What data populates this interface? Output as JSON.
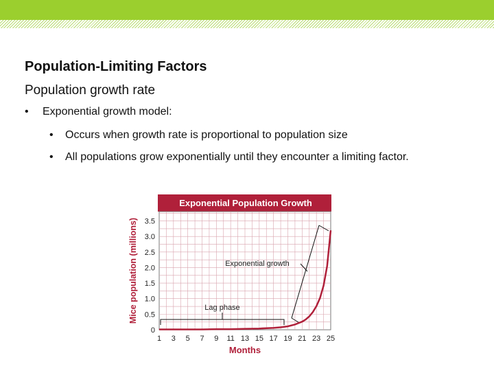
{
  "slide": {
    "title": "Population-Limiting Factors",
    "subtitle": "Population growth rate",
    "bullet1": "Exponential growth model:",
    "bullet1_1": "Occurs when growth rate is proportional to population size",
    "bullet1_2": "All populations grow exponentially until they encounter a limiting factor.",
    "bullet_symbol": "•"
  },
  "colors": {
    "accent_green": "#9bcf2e",
    "chart_title_bg": "#b0203a",
    "curve": "#b0203a",
    "axis_label": "#b0203a",
    "grid": "#d9a3ae"
  },
  "chart_data": {
    "type": "line",
    "title": "Exponential Population Growth",
    "xlabel": "Months",
    "ylabel": "Mice population (millions)",
    "x_ticks": [
      "1",
      "3",
      "5",
      "7",
      "9",
      "11",
      "13",
      "15",
      "17",
      "19",
      "21",
      "23",
      "25"
    ],
    "y_ticks": [
      "0",
      "0.5",
      "1.0",
      "1.5",
      "2.0",
      "2.5",
      "3.0",
      "3.5"
    ],
    "xlim": [
      1,
      25
    ],
    "ylim": [
      0,
      3.8
    ],
    "grid": true,
    "series": [
      {
        "x": [
          1,
          3,
          5,
          7,
          9,
          11,
          13,
          15,
          17,
          18,
          19,
          20,
          21,
          21.5,
          22,
          22.5,
          23,
          23.5,
          24,
          24.5,
          25
        ],
        "y": [
          0.01,
          0.01,
          0.01,
          0.01,
          0.02,
          0.02,
          0.03,
          0.04,
          0.06,
          0.08,
          0.11,
          0.17,
          0.26,
          0.33,
          0.43,
          0.57,
          0.76,
          1.02,
          1.42,
          2.05,
          3.2
        ]
      }
    ],
    "annotations": [
      {
        "text": "Exponential growth",
        "target": "exponential-portion"
      },
      {
        "text": "Lag phase",
        "target": "months 1 to 19"
      }
    ]
  }
}
